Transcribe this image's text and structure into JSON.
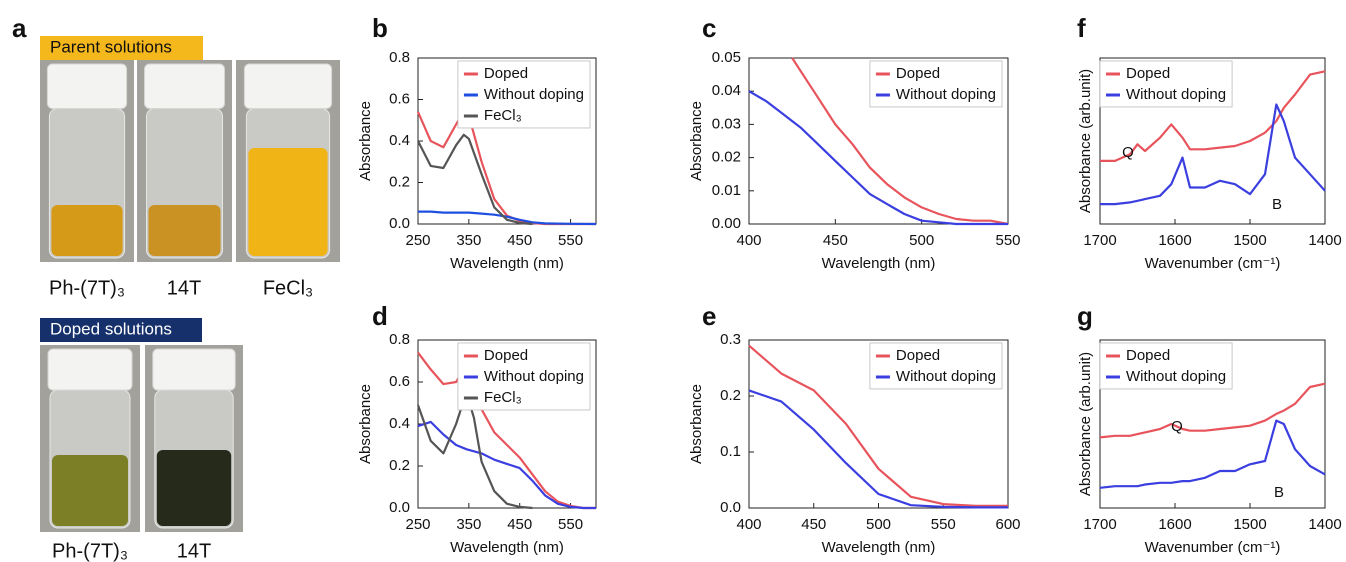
{
  "photos": {
    "label": "a",
    "parent": {
      "title": "Parent solutions",
      "samples": [
        "Ph-(7T)₃",
        "14T",
        "FeCl₃"
      ]
    },
    "doped": {
      "title": "Doped solutions",
      "samples": [
        "Ph-(7T)₃",
        "14T"
      ]
    }
  },
  "chart_data": [
    {
      "type": "line",
      "label": "b",
      "xlabel": "Wavelength (nm)",
      "ylabel": "Absorbance",
      "legend": "upper right",
      "x": [
        250,
        275,
        300,
        325,
        340,
        350,
        375,
        400,
        425,
        450,
        475,
        500,
        550,
        600
      ],
      "series": [
        {
          "name": "Doped",
          "color": "#e8545c",
          "values": [
            0.54,
            0.4,
            0.37,
            0.48,
            0.545,
            0.52,
            0.3,
            0.12,
            0.04,
            0.015,
            0.005,
            0.0,
            0.0,
            0.0
          ]
        },
        {
          "name": "Without doping",
          "color": "#1f4fe0",
          "values": [
            0.06,
            0.06,
            0.055,
            0.055,
            0.055,
            0.055,
            0.05,
            0.045,
            0.035,
            0.02,
            0.008,
            0.003,
            0.001,
            0.0
          ]
        },
        {
          "name": "FeCl₃",
          "color": "#555555",
          "values": [
            0.4,
            0.28,
            0.27,
            0.38,
            0.43,
            0.41,
            0.24,
            0.08,
            0.02,
            0.005,
            0.0,
            null,
            null,
            null
          ]
        }
      ],
      "xlim": [
        250,
        600
      ],
      "xticks": [
        250,
        350,
        450,
        550
      ],
      "ylim": [
        0,
        0.8
      ],
      "yticks": [
        {
          "value": 0,
          "label": "0.0"
        },
        0.2,
        0.4,
        0.6,
        0.8
      ]
    },
    {
      "type": "line",
      "label": "c",
      "xlabel": "Wavelength (nm)",
      "ylabel": "Absorbance",
      "legend": "upper right",
      "x": [
        400,
        410,
        420,
        425,
        430,
        440,
        450,
        460,
        470,
        480,
        490,
        500,
        510,
        520,
        530,
        540,
        550
      ],
      "series": [
        {
          "name": "Doped",
          "color": "#e8545c",
          "values": [
            null,
            null,
            null,
            0.05,
            0.046,
            0.038,
            0.03,
            0.024,
            0.017,
            0.012,
            0.008,
            0.005,
            0.003,
            0.0015,
            0.001,
            0.001,
            0.0
          ]
        },
        {
          "name": "Without doping",
          "color": "#3b3fe0",
          "values": [
            0.04,
            0.037,
            0.033,
            0.031,
            0.029,
            0.024,
            0.019,
            0.014,
            0.009,
            0.006,
            0.003,
            0.001,
            0.0005,
            0.0,
            0.0,
            0.0,
            0.0
          ]
        }
      ],
      "xlim": [
        400,
        550
      ],
      "xticks": [
        400,
        450,
        500,
        550
      ],
      "ylim": [
        0,
        0.05
      ],
      "yticks": [
        {
          "value": 0,
          "label": "0.00"
        },
        0.01,
        0.02,
        0.03,
        0.04,
        0.05
      ]
    },
    {
      "type": "line",
      "label": "f",
      "xlabel": "Wavenumber (cm⁻¹)",
      "ylabel": "Absorbance (arb.unit)",
      "legend": "upper left",
      "annotations": [
        "Q",
        "B"
      ],
      "x": [
        1700,
        1680,
        1660,
        1650,
        1640,
        1620,
        1605,
        1590,
        1580,
        1560,
        1540,
        1520,
        1500,
        1480,
        1465,
        1455,
        1440,
        1420,
        1400
      ],
      "series": [
        {
          "name": "Doped",
          "color": "#e8545c",
          "values": [
            0.38,
            0.38,
            0.42,
            0.48,
            0.44,
            0.52,
            0.6,
            0.52,
            0.45,
            0.45,
            0.46,
            0.47,
            0.5,
            0.55,
            0.62,
            0.7,
            0.78,
            0.9,
            0.92
          ]
        },
        {
          "name": "Without doping",
          "color": "#3b3fe0",
          "values": [
            0.12,
            0.12,
            0.13,
            0.14,
            0.15,
            0.17,
            0.24,
            0.4,
            0.22,
            0.22,
            0.26,
            0.24,
            0.18,
            0.3,
            0.72,
            0.62,
            0.4,
            0.3,
            0.2
          ]
        }
      ],
      "xlim": [
        1700,
        1400
      ],
      "xticks": [
        1700,
        1600,
        1500,
        1400
      ],
      "ylim": [
        0,
        1
      ]
    },
    {
      "type": "line",
      "label": "d",
      "xlabel": "Wavelength (nm)",
      "ylabel": "Absorbance",
      "legend": "upper right",
      "x": [
        250,
        275,
        300,
        325,
        345,
        360,
        375,
        400,
        425,
        450,
        475,
        500,
        525,
        550,
        575,
        600
      ],
      "series": [
        {
          "name": "Doped",
          "color": "#e8545c",
          "values": [
            0.74,
            0.66,
            0.59,
            0.6,
            0.68,
            0.6,
            0.47,
            0.36,
            0.3,
            0.24,
            0.16,
            0.08,
            0.03,
            0.01,
            0.0,
            0.0
          ]
        },
        {
          "name": "Without doping",
          "color": "#3b3fe0",
          "values": [
            0.39,
            0.41,
            0.35,
            0.3,
            0.28,
            0.27,
            0.26,
            0.23,
            0.21,
            0.19,
            0.13,
            0.06,
            0.02,
            0.005,
            0.0,
            0.0
          ]
        },
        {
          "name": "FeCl₃",
          "color": "#555555",
          "values": [
            0.49,
            0.32,
            0.26,
            0.4,
            0.55,
            0.43,
            0.22,
            0.08,
            0.02,
            0.005,
            0.0,
            null,
            null,
            null,
            null,
            null
          ]
        }
      ],
      "xlim": [
        250,
        600
      ],
      "xticks": [
        250,
        350,
        450,
        550
      ],
      "ylim": [
        0,
        0.8
      ],
      "yticks": [
        {
          "value": 0,
          "label": "0.0"
        },
        0.2,
        0.4,
        0.6,
        0.8
      ]
    },
    {
      "type": "line",
      "label": "e",
      "xlabel": "Wavelength (nm)",
      "ylabel": "Absorbance",
      "legend": "upper right",
      "x": [
        400,
        425,
        450,
        475,
        500,
        525,
        550,
        575,
        600
      ],
      "series": [
        {
          "name": "Doped",
          "color": "#e8545c",
          "values": [
            0.29,
            0.24,
            0.21,
            0.15,
            0.07,
            0.02,
            0.007,
            0.004,
            0.004
          ]
        },
        {
          "name": "Without doping",
          "color": "#3b3fe0",
          "values": [
            0.21,
            0.19,
            0.14,
            0.08,
            0.025,
            0.005,
            0.002,
            0.001,
            0.001
          ]
        }
      ],
      "xlim": [
        400,
        600
      ],
      "xticks": [
        400,
        450,
        500,
        550,
        600
      ],
      "ylim": [
        0,
        0.3
      ],
      "yticks": [
        {
          "value": 0,
          "label": "0.0"
        },
        0.1,
        0.2,
        0.3
      ]
    },
    {
      "type": "line",
      "label": "g",
      "xlabel": "Wavenumber (cm⁻¹)",
      "ylabel": "Absorbance (arb.unit)",
      "legend": "upper left",
      "annotations": [
        "Q",
        "B"
      ],
      "x": [
        1700,
        1680,
        1660,
        1650,
        1640,
        1620,
        1605,
        1590,
        1580,
        1560,
        1540,
        1520,
        1500,
        1480,
        1465,
        1455,
        1440,
        1420,
        1400
      ],
      "series": [
        {
          "name": "Doped",
          "color": "#e8545c",
          "values": [
            0.42,
            0.43,
            0.43,
            0.44,
            0.45,
            0.47,
            0.5,
            0.47,
            0.46,
            0.46,
            0.47,
            0.48,
            0.49,
            0.52,
            0.56,
            0.58,
            0.62,
            0.72,
            0.74
          ]
        },
        {
          "name": "Without doping",
          "color": "#3b3fe0",
          "values": [
            0.12,
            0.13,
            0.13,
            0.13,
            0.14,
            0.15,
            0.15,
            0.16,
            0.16,
            0.18,
            0.22,
            0.22,
            0.26,
            0.28,
            0.52,
            0.5,
            0.35,
            0.25,
            0.2
          ]
        }
      ],
      "xlim": [
        1700,
        1400
      ],
      "xticks": [
        1700,
        1600,
        1500,
        1400
      ],
      "ylim": [
        0,
        1
      ]
    }
  ]
}
